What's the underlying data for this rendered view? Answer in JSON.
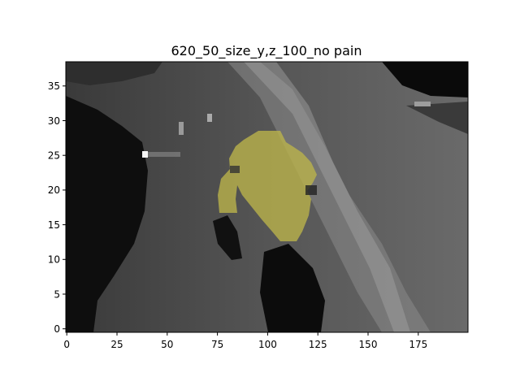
{
  "figure": {
    "title": "620_50_size_y,z_100_no pain"
  },
  "axes": {
    "x_ticks": [
      {
        "value": 0,
        "label": "0"
      },
      {
        "value": 25,
        "label": "25"
      },
      {
        "value": 50,
        "label": "50"
      },
      {
        "value": 75,
        "label": "75"
      },
      {
        "value": 100,
        "label": "100"
      },
      {
        "value": 125,
        "label": "125"
      },
      {
        "value": 150,
        "label": "150"
      },
      {
        "value": 175,
        "label": "175"
      }
    ],
    "y_ticks": [
      {
        "value": 0,
        "label": "0"
      },
      {
        "value": 5,
        "label": "5"
      },
      {
        "value": 10,
        "label": "10"
      },
      {
        "value": 15,
        "label": "15"
      },
      {
        "value": 20,
        "label": "20"
      },
      {
        "value": 25,
        "label": "25"
      },
      {
        "value": 30,
        "label": "30"
      },
      {
        "value": 35,
        "label": "35"
      }
    ],
    "x_range": [
      0,
      200
    ],
    "y_range": [
      -0.5,
      38.5
    ]
  },
  "colors": {
    "overlay": "#bdb54a",
    "background": "#ffffff"
  }
}
